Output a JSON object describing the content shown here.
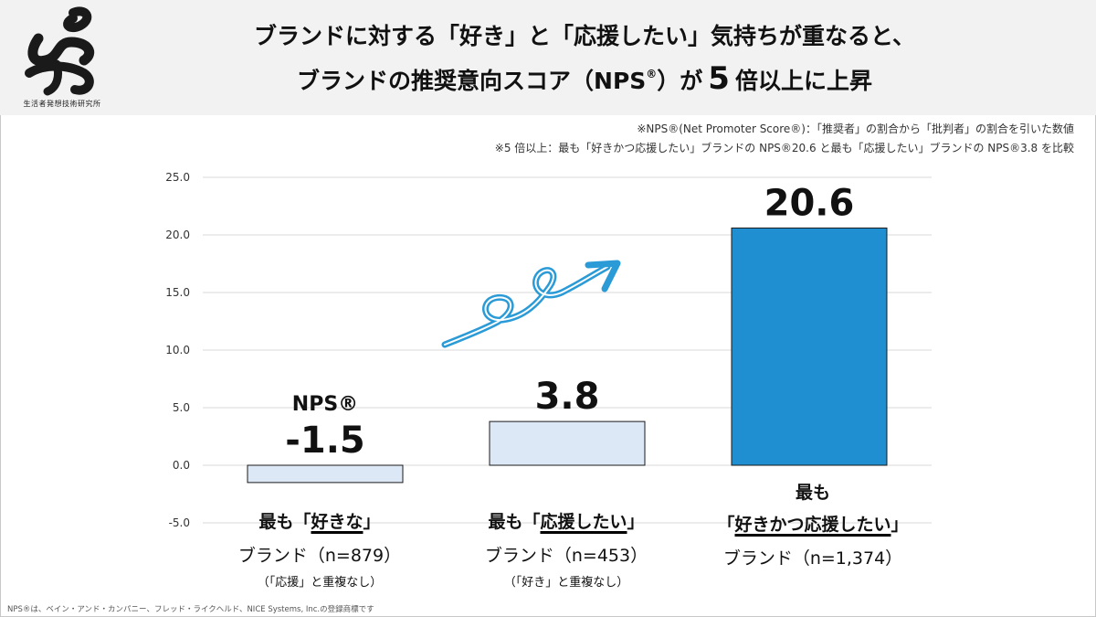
{
  "header": {
    "logo_text": "生活者発想技術研究所",
    "title_line1": "ブランドに対する「好き」と「応援したい」気持ちが重なると、",
    "title_line2_a": "ブランドの推奨意向スコア（NPS",
    "title_line2_sup": "®",
    "title_line2_b": "）が",
    "title_line2_big": "5",
    "title_line2_c": "倍以上に上昇"
  },
  "notes": {
    "note1": "※NPS®(Net Promoter Score®)：「推奨者」の割合から「批判者」の割合を引いた数値",
    "note2": "※5 倍以上：最も「好きかつ応援したい」ブランドの NPS®20.6 と最も「応援したい」ブランドの NPS®3.8 を比較"
  },
  "chart_data": {
    "type": "bar",
    "categories": [
      "最も「好きな」ブランド（n=879）",
      "最も「応援したい」ブランド（n=453）",
      "最も「好きかつ応援したい」ブランド（n=1,374）"
    ],
    "series": [
      {
        "values": [
          -1.5,
          3.8,
          20.6
        ]
      }
    ],
    "value_labels": [
      "-1.5",
      "3.8",
      "20.6"
    ],
    "value_label_prefix": "NPS®",
    "ylim": [
      -5.0,
      25.0
    ],
    "yticks": [
      25.0,
      20.0,
      15.0,
      10.0,
      5.0,
      0.0,
      -5.0
    ],
    "ytick_labels": [
      "25.0",
      "20.0",
      "15.0",
      "10.0",
      "5.0",
      "0.0",
      "-5.0"
    ],
    "grid": true,
    "colors": [
      "#dde8f6",
      "#dde8f6",
      "#1f8fd1"
    ],
    "bar_edge": "#1a1a1a",
    "annotation": "upward-arrow"
  },
  "categories_display": [
    {
      "pre": "最も「",
      "hl": "好きな",
      "post": "」",
      "sub": "ブランド（n=879）",
      "note": "（「応援」と重複なし）"
    },
    {
      "pre": "最も「",
      "hl": "応援したい",
      "post": "」",
      "sub": "ブランド（n=453）",
      "note": "（「好き」と重複なし）"
    },
    {
      "line0": "最も",
      "pre": "「",
      "hl": "好きかつ応援したい",
      "post": "」",
      "sub": "ブランド（n=1,374）"
    }
  ],
  "footnote": "NPS®は、ベイン・アンド・カンパニー、フレッド・ライクヘルド、NICE Systems, Inc.の登録商標です"
}
